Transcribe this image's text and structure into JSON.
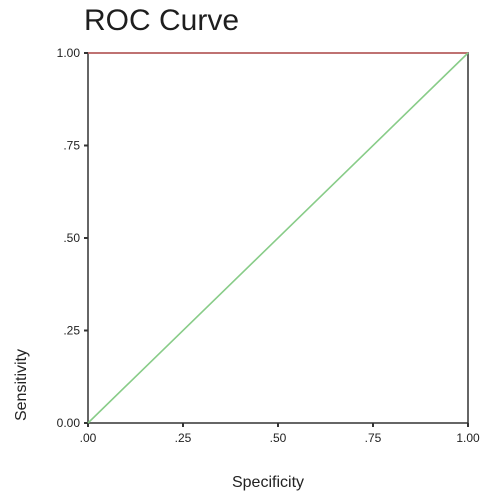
{
  "chart_data": {
    "type": "line",
    "title": "ROC Curve",
    "xlabel": "Specificity",
    "ylabel": "Sensitivity",
    "xlim": [
      0,
      1
    ],
    "ylim": [
      0,
      1
    ],
    "x_ticks": [
      ".00",
      ".25",
      ".50",
      ".75",
      "1.00"
    ],
    "x_tick_values": [
      0,
      0.25,
      0.5,
      0.75,
      1
    ],
    "y_ticks": [
      "0.00",
      ".25",
      ".50",
      ".75",
      "1.00"
    ],
    "y_tick_values": [
      0,
      0.25,
      0.5,
      0.75,
      1
    ],
    "grid": false,
    "series": [
      {
        "x": [
          0,
          1
        ],
        "y": [
          1,
          1
        ],
        "color": "#cc6666"
      },
      {
        "x": [
          0,
          1
        ],
        "y": [
          0,
          1
        ],
        "color": "#88cc88"
      }
    ]
  }
}
